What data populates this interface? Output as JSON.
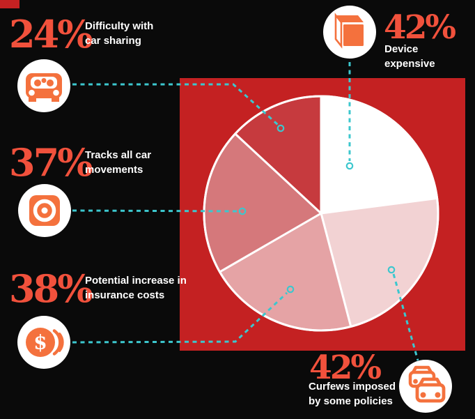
{
  "palette": {
    "background": "#0a0a0a",
    "panel_red": "#c42122",
    "number_orange_red": "#f1513c",
    "icon_orange": "#f4713d",
    "connector_teal": "#3cc7ce",
    "label_white": "#ffffff"
  },
  "stats": [
    {
      "id": "sharing",
      "value": "24%",
      "label_line1": "Difficulty with",
      "label_line2": "car sharing",
      "icon": "car-front-icon"
    },
    {
      "id": "tracks",
      "value": "37%",
      "label_line1": "Tracks all car",
      "label_line2": "movements",
      "icon": "tracker-icon"
    },
    {
      "id": "insurance",
      "value": "38%",
      "label_line1": "Potential increase in",
      "label_line2": "insurance costs",
      "icon": "coins-icon"
    },
    {
      "id": "device",
      "value": "42%",
      "label_line1": "Device",
      "label_line2": "expensive",
      "icon": "cube-icon"
    },
    {
      "id": "curfews",
      "value": "42%",
      "label_line1": "Curfews imposed",
      "label_line2": "by some policies",
      "icon": "traffic-icon"
    }
  ],
  "chart_data": {
    "type": "pie",
    "title": "",
    "direction": "clockwise",
    "start_angle_deg": 0,
    "angle_basis": "values normalized to 360 degrees (sum = 183)",
    "legend_position": "callouts with dashed connectors",
    "slices": [
      {
        "label": "Device expensive",
        "value": 42,
        "color": "#ffffff"
      },
      {
        "label": "Curfews imposed by some policies",
        "value": 42,
        "color": "#f2d2d3"
      },
      {
        "label": "Potential increase in insurance costs",
        "value": 38,
        "color": "#e5a3a5"
      },
      {
        "label": "Tracks all car movements",
        "value": 37,
        "color": "#d5787b"
      },
      {
        "label": "Difficulty with car sharing",
        "value": 24,
        "color": "#c63a3e"
      }
    ]
  }
}
